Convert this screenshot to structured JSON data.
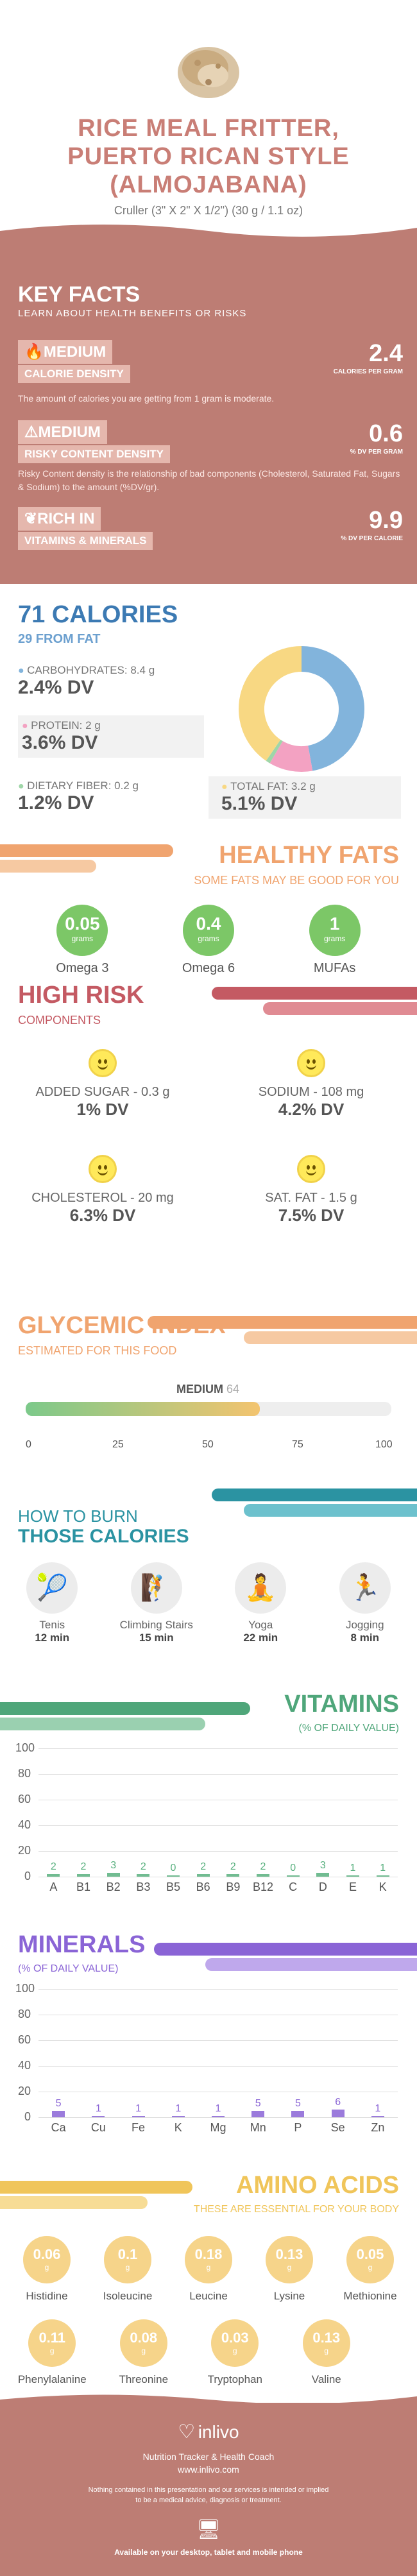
{
  "header": {
    "title_line1": "RICE MEAL FRITTER,",
    "title_line2": "PUERTO RICAN STYLE",
    "title_line3": "(ALMOJABANA)",
    "serving": "Cruller (3\" X 2\" X 1/2\") (30 g / 1.1 oz)"
  },
  "key_facts": {
    "title": "KEY FACTS",
    "subtitle": "LEARN ABOUT HEALTH BENEFITS OR RISKS",
    "items": [
      {
        "level": "MEDIUM",
        "label": "CALORIE DENSITY",
        "value": "2.4",
        "unit": "CALORIES PER GRAM",
        "desc": "The amount of calories you are getting from 1 gram is moderate."
      },
      {
        "level": "MEDIUM",
        "label": "RISKY CONTENT DENSITY",
        "value": "0.6",
        "unit": "% DV PER GRAM",
        "desc": "Risky Content density is the relationship of bad components (Cholesterol, Saturated Fat, Sugars & Sodium) to the amount (%DV/gr)."
      },
      {
        "level": "RICH",
        "level2": "IN",
        "label": "VITAMINS & MINERALS",
        "value": "9.9",
        "unit": "% DV PER CALORIE",
        "desc": ""
      }
    ]
  },
  "calories": {
    "title": "71 CALORIES",
    "sub": "29 FROM FAT",
    "carbs": {
      "label": "CARBOHYDRATES: 8.4 g",
      "dv": "2.4% DV",
      "color": "#82b4dc"
    },
    "protein": {
      "label": "PROTEIN: 2 g",
      "dv": "3.6% DV",
      "color": "#f3a2c2"
    },
    "fiber": {
      "label": "DIETARY FIBER: 0.2 g",
      "dv": "1.2% DV",
      "color": "#9fd6a8"
    },
    "fat": {
      "label": "TOTAL FAT: 3.2 g",
      "dv": "5.1% DV",
      "color": "#f8d883"
    },
    "donut": [
      {
        "name": "carbs",
        "value": 33.6,
        "color": "#82b4dc"
      },
      {
        "name": "protein",
        "value": 8,
        "color": "#f3a2c2"
      },
      {
        "name": "fiber",
        "value": 0.8,
        "color": "#9fd6a8"
      },
      {
        "name": "fat",
        "value": 28.8,
        "color": "#f8d883"
      }
    ]
  },
  "healthy_fats": {
    "title": "HEALTHY FATS",
    "sub": "SOME FATS MAY BE GOOD FOR YOU",
    "items": [
      {
        "value": "0.05",
        "unit": "grams",
        "name": "Omega 3"
      },
      {
        "value": "0.4",
        "unit": "grams",
        "name": "Omega 6"
      },
      {
        "value": "1",
        "unit": "grams",
        "name": "MUFAs"
      }
    ]
  },
  "high_risk": {
    "title": "HIGH RISK",
    "sub": "COMPONENTS",
    "items": [
      {
        "label": "ADDED SUGAR - 0.3 g",
        "dv": "1% DV"
      },
      {
        "label": "SODIUM - 108 mg",
        "dv": "4.2% DV"
      },
      {
        "label": "CHOLESTEROL - 20 mg",
        "dv": "6.3% DV"
      },
      {
        "label": "SAT. FAT - 1.5 g",
        "dv": "7.5% DV"
      }
    ]
  },
  "glycemic": {
    "title": "GLYCEMIC INDEX",
    "sub": "ESTIMATED FOR THIS FOOD",
    "level": "MEDIUM",
    "value": 64,
    "value_text": "64",
    "ticks": [
      "0",
      "25",
      "50",
      "75",
      "100"
    ]
  },
  "burn": {
    "title1": "HOW TO BURN",
    "title2": "THOSE CALORIES",
    "items": [
      {
        "name": "Tenis",
        "time": "12 min"
      },
      {
        "name": "Climbing Stairs",
        "time": "15 min"
      },
      {
        "name": "Yoga",
        "time": "22 min"
      },
      {
        "name": "Jogging",
        "time": "8 min"
      }
    ]
  },
  "vitamins": {
    "title": "VITAMINS",
    "sub": "(% OF DAILY VALUE)"
  },
  "minerals": {
    "title": "MINERALS",
    "sub": "(% OF DAILY VALUE)"
  },
  "chart_data": [
    {
      "type": "bar",
      "title": "VITAMINS",
      "ylim": [
        0,
        100
      ],
      "yticks": [
        "100",
        "80",
        "60",
        "40",
        "20",
        "0"
      ],
      "categories": [
        "A",
        "B1",
        "B2",
        "B3",
        "B5",
        "B6",
        "B9",
        "B12",
        "C",
        "D",
        "E",
        "K"
      ],
      "values": [
        2,
        2,
        3,
        2,
        0,
        2,
        2,
        2,
        0,
        3,
        1,
        1
      ],
      "labels": [
        "2",
        "2",
        "3",
        "2",
        "0",
        "2",
        "2",
        "2",
        "0",
        "3",
        "1",
        "1"
      ],
      "color": "#58b07e"
    },
    {
      "type": "bar",
      "title": "MINERALS",
      "ylim": [
        0,
        100
      ],
      "yticks": [
        "100",
        "80",
        "60",
        "40",
        "20",
        "0"
      ],
      "categories": [
        "Ca",
        "Cu",
        "Fe",
        "K",
        "Mg",
        "Mn",
        "P",
        "Se",
        "Zn"
      ],
      "values": [
        5,
        1,
        1,
        1,
        1,
        5,
        5,
        6,
        1
      ],
      "labels": [
        "5",
        "1",
        "1",
        "1",
        "1",
        "5",
        "5",
        "6",
        "1"
      ],
      "color": "#8a64d6"
    }
  ],
  "amino": {
    "title": "AMINO ACIDS",
    "sub": "THESE ARE ESSENTIAL FOR YOUR BODY",
    "row1": [
      {
        "value": "0.06",
        "unit": "g",
        "name": "Histidine"
      },
      {
        "value": "0.1",
        "unit": "g",
        "name": "Isoleucine"
      },
      {
        "value": "0.18",
        "unit": "g",
        "name": "Leucine"
      },
      {
        "value": "0.13",
        "unit": "g",
        "name": "Lysine"
      },
      {
        "value": "0.05",
        "unit": "g",
        "name": "Methionine"
      }
    ],
    "row2": [
      {
        "value": "0.11",
        "unit": "g",
        "name": "Phenylalanine"
      },
      {
        "value": "0.08",
        "unit": "g",
        "name": "Threonine"
      },
      {
        "value": "0.03",
        "unit": "g",
        "name": "Tryptophan"
      },
      {
        "value": "0.13",
        "unit": "g",
        "name": "Valine"
      }
    ]
  },
  "footer": {
    "brand": "inlivo",
    "tag": "Nutrition Tracker & Health Coach",
    "url": "www.inlivo.com",
    "disclaimer1": "Nothing contained in this presentation and our services is intended or implied",
    "disclaimer2": "to be a medical advice, diagnosis or treatment.",
    "available": "Available on your desktop, tablet and mobile phone"
  }
}
